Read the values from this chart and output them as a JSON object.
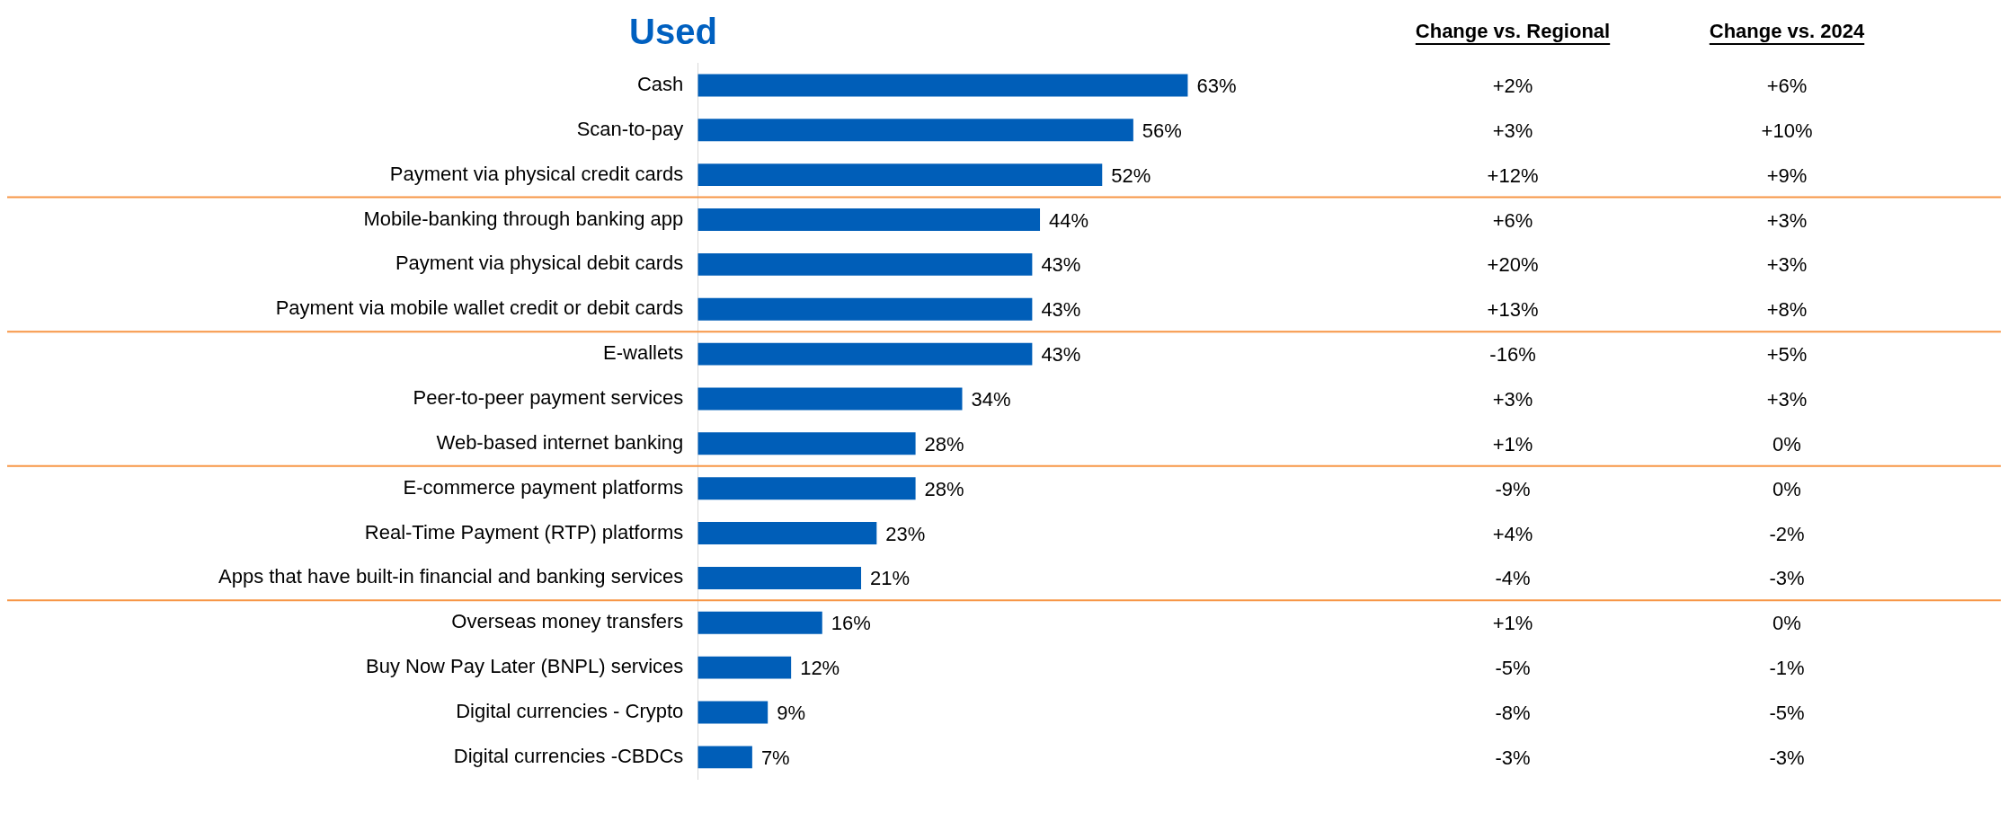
{
  "chart_data": {
    "type": "bar",
    "orientation": "horizontal",
    "title": "Used",
    "categories": [
      "Cash",
      "Scan-to-pay",
      "Payment via physical credit cards",
      "Mobile-banking through banking app",
      "Payment via physical debit cards",
      "Payment via mobile wallet credit or debit cards",
      "E-wallets",
      "Peer-to-peer payment services",
      "Web-based internet banking",
      "E-commerce payment platforms",
      "Real-Time Payment (RTP) platforms",
      "Apps that have built-in financial and banking services",
      "Overseas money transfers",
      "Buy Now Pay Later (BNPL) services",
      "Digital currencies - Crypto",
      "Digital currencies -CBDCs"
    ],
    "values": [
      63,
      56,
      52,
      44,
      43,
      43,
      43,
      34,
      28,
      28,
      23,
      21,
      16,
      12,
      9,
      7
    ],
    "value_labels": [
      "63%",
      "56%",
      "52%",
      "44%",
      "43%",
      "43%",
      "43%",
      "34%",
      "28%",
      "28%",
      "23%",
      "21%",
      "16%",
      "12%",
      "9%",
      "7%"
    ],
    "color": "#005eb8",
    "tick_labels": "y",
    "grid": false,
    "ref_lines": [
      {
        "axis": "y",
        "value": "Payment via physical credit cards",
        "color": "#f79646"
      },
      {
        "axis": "y",
        "value": "Payment via mobile wallet credit or debit cards",
        "color": "#f79646"
      },
      {
        "axis": "y",
        "value": "Web-based internet banking",
        "color": "#f79646"
      },
      {
        "axis": "y",
        "value": "Apps that have built-in financial and banking services",
        "color": "#f79646"
      }
    ],
    "annotations": [
      "Change vs. Regional",
      "Change vs. 2024",
      "+2%",
      "+6%",
      "+3%",
      "+10%",
      "+12%",
      "+9%",
      "+6%",
      "+3%",
      "+20%",
      "+3%",
      "+13%",
      "+8%",
      "-16%",
      "+5%",
      "+3%",
      "+3%",
      "+1%",
      "0%",
      "-9%",
      "0%",
      "+4%",
      "-2%",
      "-4%",
      "-3%",
      "+1%",
      "0%",
      "-5%",
      "-1%",
      "-8%",
      "-5%",
      "-3%",
      "-3%"
    ]
  }
}
